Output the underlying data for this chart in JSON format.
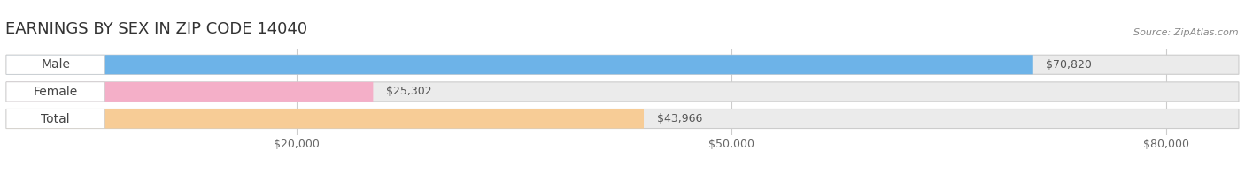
{
  "title": "EARNINGS BY SEX IN ZIP CODE 14040",
  "source": "Source: ZipAtlas.com",
  "categories": [
    "Male",
    "Female",
    "Total"
  ],
  "values": [
    70820,
    25302,
    43966
  ],
  "bar_colors": [
    "#6db3e8",
    "#f4afc8",
    "#f7cc96"
  ],
  "track_color": "#ebebeb",
  "xmin": 0,
  "xmax": 85000,
  "xticks": [
    20000,
    50000,
    80000
  ],
  "xtick_labels": [
    "$20,000",
    "$50,000",
    "$80,000"
  ],
  "bar_height": 0.72,
  "title_fontsize": 13,
  "label_fontsize": 10,
  "value_fontsize": 9,
  "tick_fontsize": 9,
  "source_fontsize": 8,
  "background_color": "#ffffff",
  "track_border_color": "#cccccc",
  "grid_color": "#cccccc"
}
